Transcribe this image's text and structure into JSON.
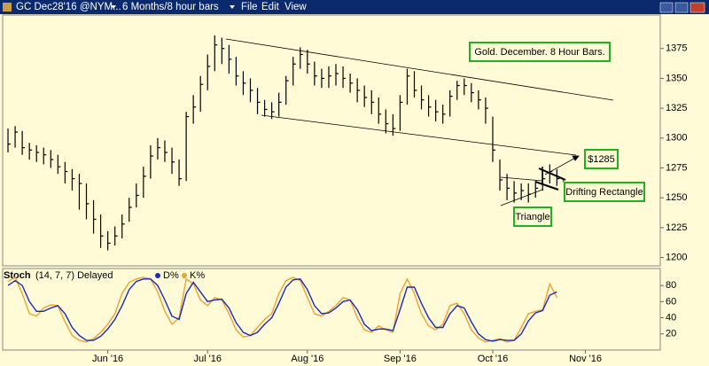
{
  "toolbar": {
    "symbol": "GC Dec28'16 @NYM...",
    "period": "6 Months/8 hour bars",
    "menu": [
      "File",
      "Edit",
      "View"
    ]
  },
  "chart_data": [
    {
      "type": "ohlc",
      "color": "#000000",
      "high": [
        1308,
        1310,
        1306,
        1296,
        1294,
        1292,
        1290,
        1286,
        1280,
        1274,
        1270,
        1262,
        1248,
        1236,
        1222,
        1226,
        1236,
        1250,
        1262,
        1276,
        1294,
        1300,
        1298,
        1292,
        1282,
        1322,
        1336,
        1352,
        1370,
        1386,
        1384,
        1378,
        1368,
        1356,
        1350,
        1342,
        1332,
        1330,
        1338,
        1352,
        1368,
        1376,
        1374,
        1364,
        1358,
        1360,
        1362,
        1360,
        1354,
        1350,
        1344,
        1340,
        1334,
        1324,
        1320,
        1336,
        1358,
        1356,
        1344,
        1336,
        1332,
        1328,
        1340,
        1348,
        1350,
        1346,
        1340,
        1334,
        1318,
        1282,
        1270,
        1264,
        1262,
        1262,
        1264,
        1272,
        1278,
        1274,
        null,
        null,
        null,
        null,
        null,
        null,
        null,
        null,
        null,
        null,
        null,
        null,
        null,
        null
      ],
      "low": [
        1288,
        1292,
        1286,
        1282,
        1280,
        1278,
        1275,
        1270,
        1262,
        1256,
        1240,
        1232,
        1220,
        1208,
        1206,
        1210,
        1216,
        1230,
        1242,
        1250,
        1266,
        1282,
        1280,
        1270,
        1260,
        1264,
        1312,
        1322,
        1340,
        1356,
        1362,
        1354,
        1344,
        1336,
        1330,
        1320,
        1318,
        1316,
        1318,
        1328,
        1344,
        1358,
        1354,
        1344,
        1342,
        1342,
        1344,
        1342,
        1338,
        1330,
        1326,
        1320,
        1312,
        1304,
        1302,
        1306,
        1328,
        1334,
        1324,
        1318,
        1314,
        1312,
        1318,
        1332,
        1336,
        1330,
        1324,
        1312,
        1280,
        1256,
        1248,
        1246,
        1248,
        1246,
        1250,
        1256,
        1262,
        1260,
        null,
        null,
        null,
        null,
        null,
        null,
        null,
        null,
        null,
        null,
        null,
        null,
        null,
        null
      ],
      "close": [
        1295,
        1305,
        1292,
        1290,
        1288,
        1286,
        1282,
        1276,
        1272,
        1266,
        1262,
        1245,
        1232,
        1218,
        1212,
        1218,
        1228,
        1242,
        1252,
        1268,
        1285,
        1292,
        1288,
        1280,
        1266,
        1318,
        1326,
        1345,
        1360,
        1378,
        1375,
        1366,
        1352,
        1346,
        1340,
        1330,
        1324,
        1322,
        1330,
        1348,
        1362,
        1370,
        1362,
        1352,
        1350,
        1352,
        1354,
        1350,
        1346,
        1340,
        1334,
        1330,
        1320,
        1312,
        1308,
        1330,
        1352,
        1340,
        1332,
        1326,
        1322,
        1320,
        1335,
        1344,
        1344,
        1338,
        1332,
        1325,
        1290,
        1265,
        1258,
        1254,
        1256,
        1253,
        1258,
        1266,
        1272,
        1266,
        null,
        null,
        null,
        null,
        null,
        null,
        null,
        null,
        null,
        null,
        null,
        null,
        null,
        null
      ],
      "ylim": [
        1193,
        1403
      ],
      "yticks": [
        1200,
        1225,
        1250,
        1275,
        1300,
        1325,
        1350,
        1375
      ],
      "annotations": [
        "Gold. December. 8 Hour Bars.",
        "$1285",
        "Drifting Rectangle",
        "Triangle"
      ]
    },
    {
      "type": "line",
      "title": "Stoch",
      "subtitle": "(14, 7, 7) Delayed",
      "categories": [
        null,
        null,
        null,
        null,
        null,
        null,
        null,
        null,
        null,
        null,
        null,
        null,
        null,
        null,
        "Jun '16",
        null,
        null,
        null,
        null,
        null,
        null,
        null,
        null,
        null,
        null,
        null,
        null,
        null,
        "Jul '16",
        null,
        null,
        null,
        null,
        null,
        null,
        null,
        null,
        null,
        null,
        null,
        null,
        null,
        "Aug '16",
        null,
        null,
        null,
        null,
        null,
        null,
        null,
        null,
        null,
        null,
        null,
        null,
        "Sep '16",
        null,
        null,
        null,
        null,
        null,
        null,
        null,
        null,
        null,
        null,
        null,
        null,
        "Oct '16",
        null,
        null,
        null,
        null,
        null,
        null,
        null,
        null,
        null,
        null,
        null,
        null,
        "Nov '16",
        null,
        null,
        null,
        null,
        null,
        null,
        null,
        null,
        null,
        null
      ],
      "series": [
        {
          "name": "D%",
          "color": "#1c2ab8",
          "values": [
            80,
            86,
            80,
            60,
            48,
            48,
            52,
            55,
            45,
            28,
            18,
            12,
            12,
            17,
            26,
            38,
            55,
            75,
            85,
            88,
            88,
            80,
            62,
            42,
            38,
            70,
            84,
            72,
            60,
            62,
            63,
            52,
            34,
            22,
            18,
            22,
            32,
            40,
            58,
            78,
            87,
            88,
            75,
            55,
            45,
            46,
            52,
            60,
            62,
            50,
            32,
            24,
            26,
            26,
            24,
            50,
            78,
            78,
            58,
            40,
            28,
            28,
            45,
            55,
            52,
            35,
            20,
            13,
            11,
            13,
            12,
            12,
            20,
            36,
            46,
            49,
            68,
            72,
            null,
            null,
            null,
            null,
            null,
            null,
            null,
            null,
            null,
            null,
            null,
            null,
            null,
            null
          ]
        },
        {
          "name": "K%",
          "color": "#f0a030",
          "values": [
            85,
            90,
            70,
            45,
            42,
            52,
            56,
            55,
            35,
            18,
            12,
            10,
            14,
            22,
            32,
            45,
            70,
            84,
            88,
            90,
            88,
            72,
            48,
            32,
            40,
            88,
            82,
            62,
            55,
            65,
            62,
            45,
            25,
            16,
            18,
            28,
            38,
            45,
            70,
            86,
            90,
            86,
            65,
            45,
            42,
            48,
            55,
            65,
            62,
            40,
            25,
            22,
            30,
            25,
            22,
            70,
            88,
            70,
            45,
            30,
            25,
            32,
            55,
            58,
            45,
            25,
            15,
            10,
            12,
            14,
            10,
            12,
            28,
            45,
            48,
            50,
            82,
            65,
            null,
            null,
            null,
            null,
            null,
            null,
            null,
            null,
            null,
            null,
            null,
            null,
            null,
            null
          ]
        }
      ],
      "ylim": [
        0,
        101
      ],
      "yticks": [
        20,
        40,
        60,
        80
      ]
    }
  ]
}
